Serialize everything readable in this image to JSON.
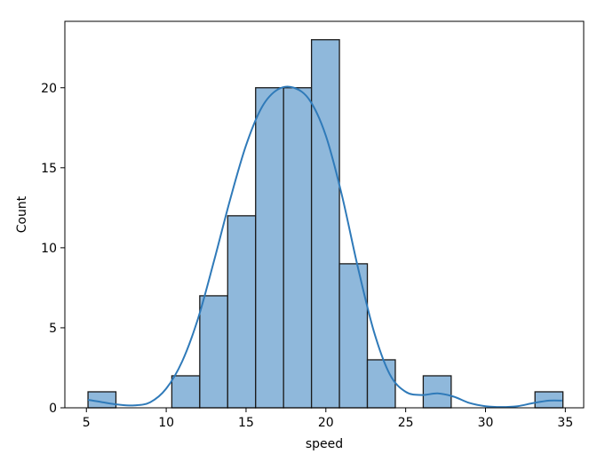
{
  "chart_data": {
    "type": "bar",
    "title": "",
    "xlabel": "speed",
    "ylabel": "Count",
    "xlim": [
      3.65,
      36.15
    ],
    "ylim": [
      0,
      24.15
    ],
    "xticks": [
      5,
      10,
      15,
      20,
      25,
      30,
      35
    ],
    "yticks": [
      0,
      5,
      10,
      15,
      20
    ],
    "bin_edges": [
      5.1,
      6.85,
      8.6,
      10.35,
      12.1,
      13.85,
      15.6,
      17.35,
      19.1,
      20.85,
      22.6,
      24.35,
      26.1,
      27.85,
      29.6,
      31.35,
      33.1,
      34.85
    ],
    "counts": [
      1,
      0,
      0,
      2,
      7,
      12,
      20,
      20,
      23,
      9,
      3,
      0,
      2,
      0,
      0,
      0,
      1
    ],
    "kde": {
      "x": [
        5.1,
        6.0,
        7.0,
        8.0,
        9.0,
        10.0,
        11.0,
        12.0,
        13.0,
        14.0,
        15.0,
        16.0,
        17.0,
        18.0,
        19.0,
        20.0,
        21.0,
        22.0,
        23.0,
        24.0,
        25.0,
        26.0,
        27.0,
        28.0,
        29.0,
        30.0,
        31.0,
        32.0,
        33.0,
        34.0,
        34.8
      ],
      "y": [
        0.5,
        0.35,
        0.2,
        0.15,
        0.35,
        1.2,
        2.9,
        5.6,
        9.2,
        13.0,
        16.4,
        18.8,
        19.9,
        20.0,
        19.2,
        17.0,
        13.3,
        8.8,
        4.8,
        2.1,
        1.0,
        0.8,
        0.9,
        0.7,
        0.3,
        0.1,
        0.05,
        0.1,
        0.3,
        0.45,
        0.45
      ]
    },
    "colors": {
      "bar_fill": "#8fb8db",
      "bar_edge": "#1a1a1a",
      "kde_line": "#2f7ab9"
    },
    "grid": false,
    "legend": "none"
  }
}
